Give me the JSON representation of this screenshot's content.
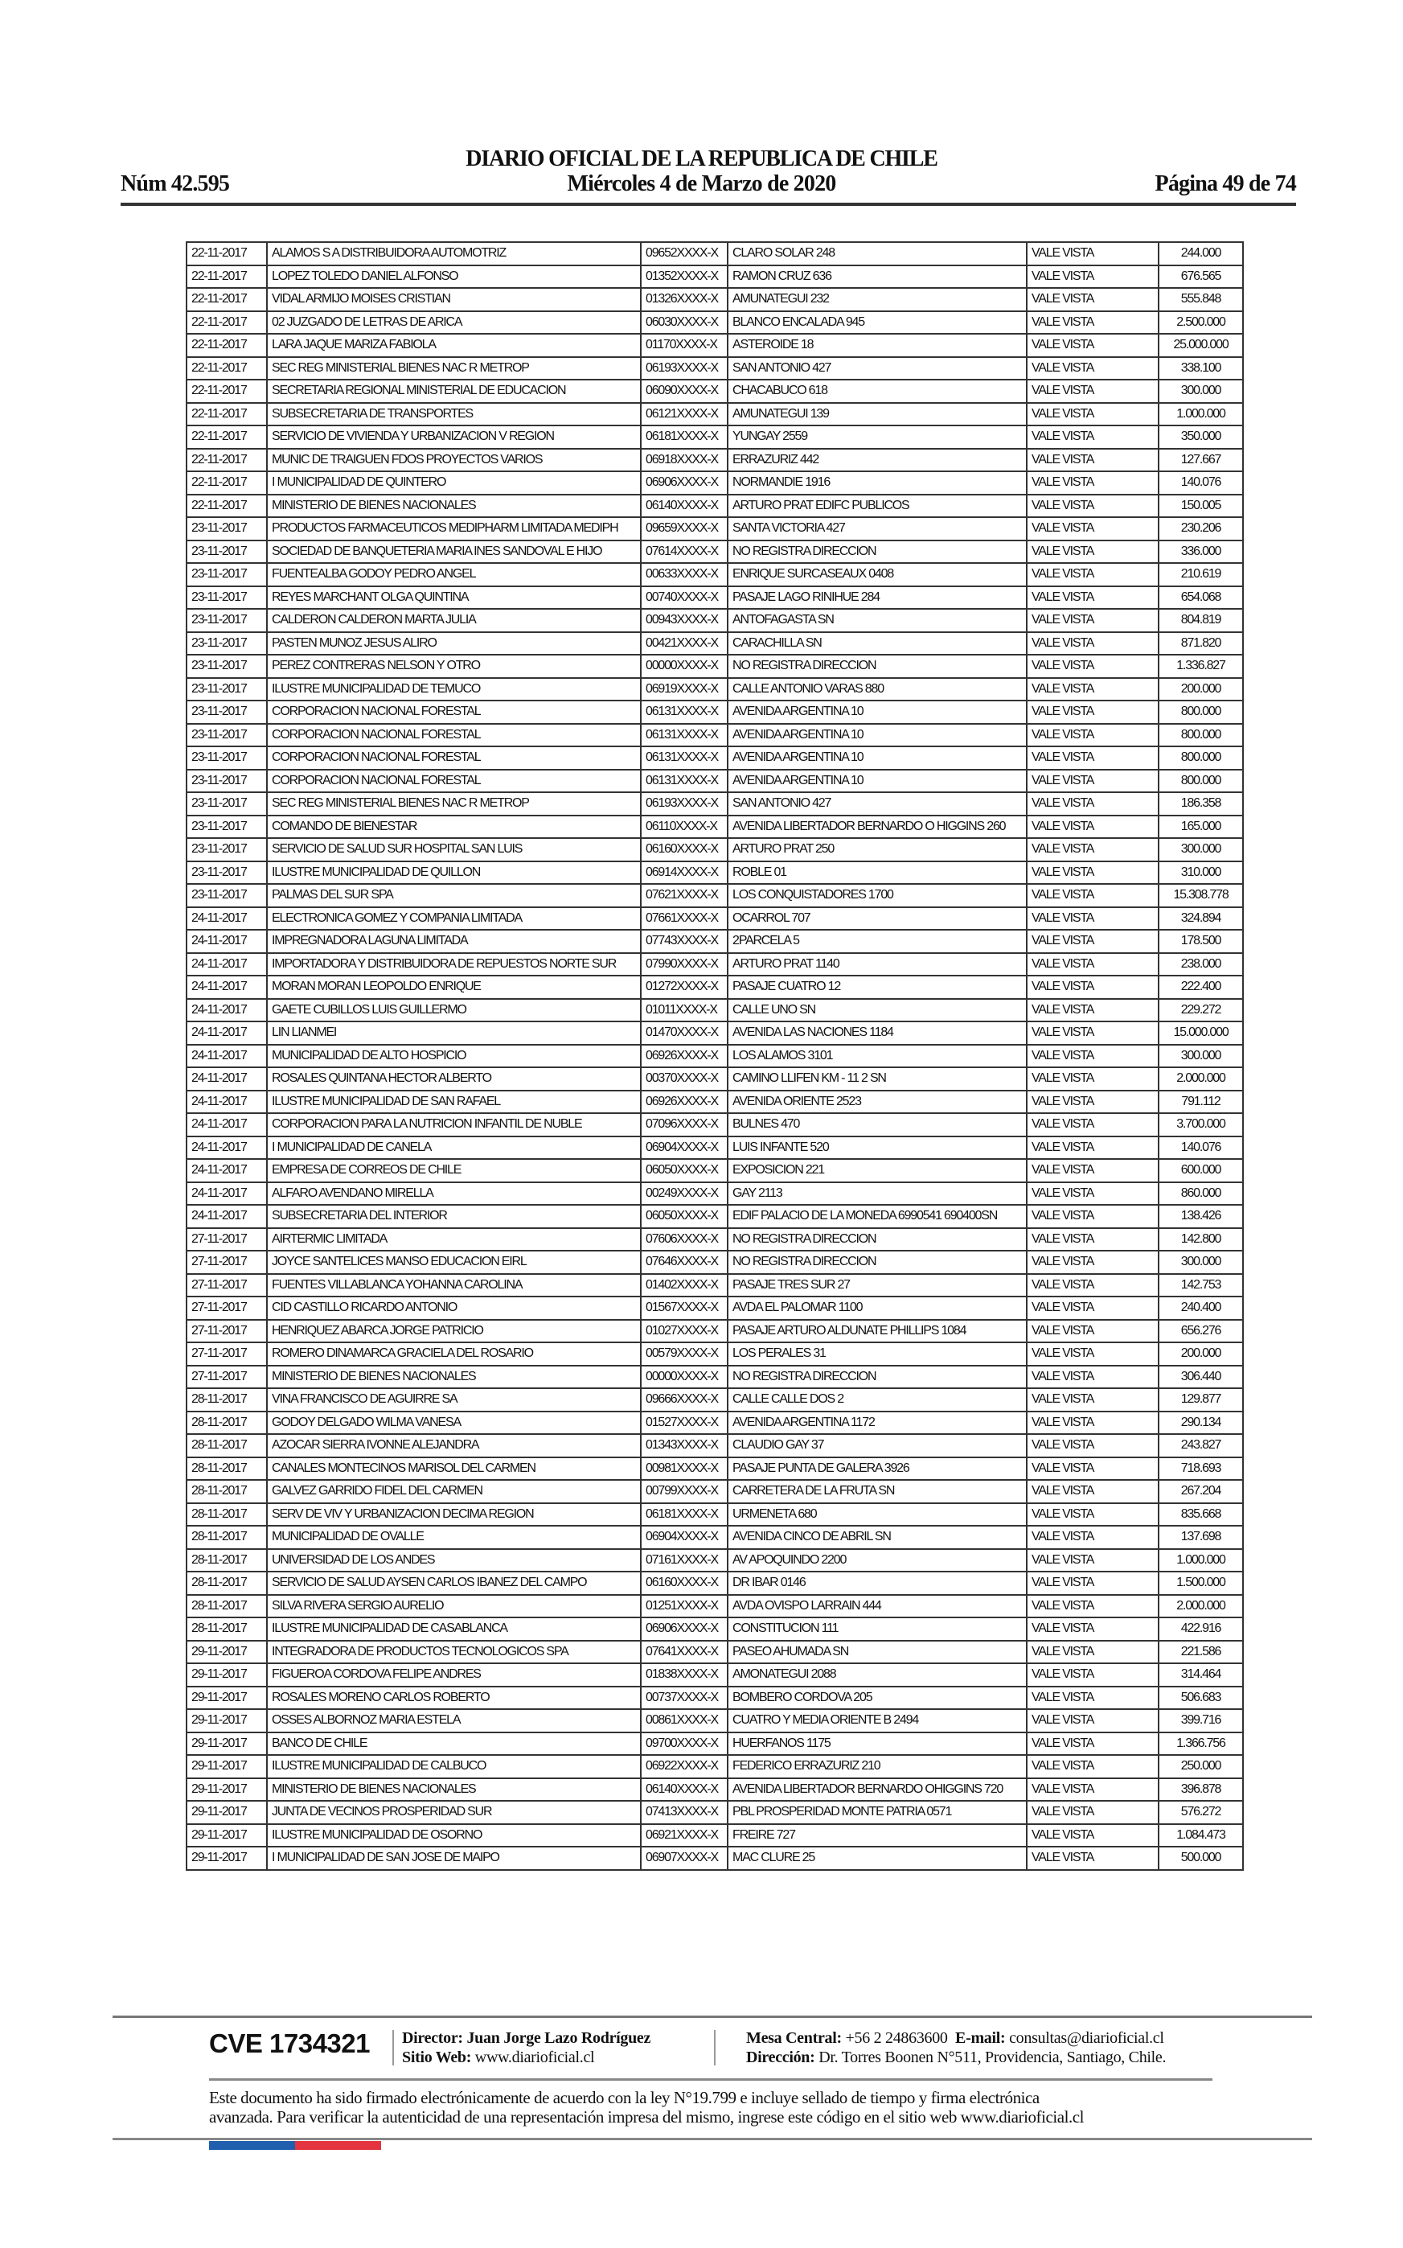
{
  "header": {
    "title": "DIARIO OFICIAL DE LA REPUBLICA DE CHILE",
    "date": "Miércoles 4 de Marzo de 2020",
    "number": "Núm 42.595",
    "page": "Página 49 de 74"
  },
  "table": {
    "rows": [
      [
        "22-11-2017",
        "ALAMOS S A DISTRIBUIDORA AUTOMOTRIZ",
        "09652XXXX-X",
        "CLARO SOLAR 248",
        "VALE VISTA",
        "244.000"
      ],
      [
        "22-11-2017",
        "LOPEZ TOLEDO DANIEL ALFONSO",
        "01352XXXX-X",
        "RAMON CRUZ 636",
        "VALE VISTA",
        "676.565"
      ],
      [
        "22-11-2017",
        "VIDAL ARMIJO MOISES CRISTIAN",
        "01326XXXX-X",
        "AMUNATEGUI 232",
        "VALE VISTA",
        "555.848"
      ],
      [
        "22-11-2017",
        "02 JUZGADO DE LETRAS DE ARICA",
        "06030XXXX-X",
        "BLANCO ENCALADA 945",
        "VALE VISTA",
        "2.500.000"
      ],
      [
        "22-11-2017",
        "LARA JAQUE MARIZA FABIOLA",
        "01170XXXX-X",
        "ASTEROIDE 18",
        "VALE VISTA",
        "25.000.000"
      ],
      [
        "22-11-2017",
        "SEC REG MINISTERIAL BIENES NAC R METROP",
        "06193XXXX-X",
        "SAN ANTONIO 427",
        "VALE VISTA",
        "338.100"
      ],
      [
        "22-11-2017",
        "SECRETARIA REGIONAL MINISTERIAL DE EDUCACION",
        "06090XXXX-X",
        "CHACABUCO 618",
        "VALE VISTA",
        "300.000"
      ],
      [
        "22-11-2017",
        "SUBSECRETARIA DE TRANSPORTES",
        "06121XXXX-X",
        "AMUNATEGUI 139",
        "VALE VISTA",
        "1.000.000"
      ],
      [
        "22-11-2017",
        "SERVICIO DE VIVIENDA Y URBANIZACION V REGION",
        "06181XXXX-X",
        "YUNGAY 2559",
        "VALE VISTA",
        "350.000"
      ],
      [
        "22-11-2017",
        "MUNIC DE TRAIGUEN FDOS PROYECTOS VARIOS",
        "06918XXXX-X",
        "ERRAZURIZ 442",
        "VALE VISTA",
        "127.667"
      ],
      [
        "22-11-2017",
        "I MUNICIPALIDAD DE QUINTERO",
        "06906XXXX-X",
        "NORMANDIE 1916",
        "VALE VISTA",
        "140.076"
      ],
      [
        "22-11-2017",
        "MINISTERIO DE BIENES NACIONALES",
        "06140XXXX-X",
        "ARTURO PRAT EDIFC PUBLICOS",
        "VALE VISTA",
        "150.005"
      ],
      [
        "23-11-2017",
        "PRODUCTOS FARMACEUTICOS MEDIPHARM LIMITADA MEDIPH",
        "09659XXXX-X",
        "SANTA VICTORIA 427",
        "VALE VISTA",
        "230.206"
      ],
      [
        "23-11-2017",
        "SOCIEDAD DE BANQUETERIA MARIA INES SANDOVAL E HIJO",
        "07614XXXX-X",
        "NO REGISTRA DIRECCION",
        "VALE VISTA",
        "336.000"
      ],
      [
        "23-11-2017",
        "FUENTEALBA GODOY PEDRO ANGEL",
        "00633XXXX-X",
        "ENRIQUE SURCASEAUX 0408",
        "VALE VISTA",
        "210.619"
      ],
      [
        "23-11-2017",
        "REYES MARCHANT OLGA QUINTINA",
        "00740XXXX-X",
        "PASAJE LAGO RINIHUE 284",
        "VALE VISTA",
        "654.068"
      ],
      [
        "23-11-2017",
        "CALDERON CALDERON MARTA JULIA",
        "00943XXXX-X",
        "ANTOFAGASTA SN",
        "VALE VISTA",
        "804.819"
      ],
      [
        "23-11-2017",
        "PASTEN MUNOZ JESUS ALIRO",
        "00421XXXX-X",
        "CARACHILLA SN",
        "VALE VISTA",
        "871.820"
      ],
      [
        "23-11-2017",
        "PEREZ CONTRERAS NELSON Y OTRO",
        "00000XXXX-X",
        "NO REGISTRA DIRECCION",
        "VALE VISTA",
        "1.336.827"
      ],
      [
        "23-11-2017",
        "ILUSTRE MUNICIPALIDAD DE TEMUCO",
        "06919XXXX-X",
        "CALLE ANTONIO VARAS 880",
        "VALE VISTA",
        "200.000"
      ],
      [
        "23-11-2017",
        "CORPORACION NACIONAL FORESTAL",
        "06131XXXX-X",
        "AVENIDA ARGENTINA 10",
        "VALE VISTA",
        "800.000"
      ],
      [
        "23-11-2017",
        "CORPORACION NACIONAL FORESTAL",
        "06131XXXX-X",
        "AVENIDA ARGENTINA 10",
        "VALE VISTA",
        "800.000"
      ],
      [
        "23-11-2017",
        "CORPORACION NACIONAL FORESTAL",
        "06131XXXX-X",
        "AVENIDA ARGENTINA 10",
        "VALE VISTA",
        "800.000"
      ],
      [
        "23-11-2017",
        "CORPORACION NACIONAL FORESTAL",
        "06131XXXX-X",
        "AVENIDA ARGENTINA 10",
        "VALE VISTA",
        "800.000"
      ],
      [
        "23-11-2017",
        "SEC REG MINISTERIAL BIENES NAC R METROP",
        "06193XXXX-X",
        "SAN ANTONIO 427",
        "VALE VISTA",
        "186.358"
      ],
      [
        "23-11-2017",
        "COMANDO DE BIENESTAR",
        "06110XXXX-X",
        "AVENIDA LIBERTADOR BERNARDO O HIGGINS 260",
        "VALE VISTA",
        "165.000"
      ],
      [
        "23-11-2017",
        "SERVICIO DE SALUD SUR HOSPITAL SAN LUIS",
        "06160XXXX-X",
        "ARTURO PRAT 250",
        "VALE VISTA",
        "300.000"
      ],
      [
        "23-11-2017",
        "ILUSTRE MUNICIPALIDAD DE QUILLON",
        "06914XXXX-X",
        "ROBLE 01",
        "VALE VISTA",
        "310.000"
      ],
      [
        "23-11-2017",
        "PALMAS DEL SUR SPA",
        "07621XXXX-X",
        "LOS CONQUISTADORES 1700",
        "VALE VISTA",
        "15.308.778"
      ],
      [
        "24-11-2017",
        "ELECTRONICA GOMEZ Y COMPANIA LIMITADA",
        "07661XXXX-X",
        "OCARROL 707",
        "VALE VISTA",
        "324.894"
      ],
      [
        "24-11-2017",
        "IMPREGNADORA LAGUNA LIMITADA",
        "07743XXXX-X",
        "2PARCELA 5",
        "VALE VISTA",
        "178.500"
      ],
      [
        "24-11-2017",
        "IMPORTADORA Y DISTRIBUIDORA DE REPUESTOS NORTE SUR",
        "07990XXXX-X",
        "ARTURO PRAT 1140",
        "VALE VISTA",
        "238.000"
      ],
      [
        "24-11-2017",
        "MORAN MORAN LEOPOLDO ENRIQUE",
        "01272XXXX-X",
        "PASAJE CUATRO 12",
        "VALE VISTA",
        "222.400"
      ],
      [
        "24-11-2017",
        "GAETE CUBILLOS LUIS GUILLERMO",
        "01011XXXX-X",
        "CALLE UNO SN",
        "VALE VISTA",
        "229.272"
      ],
      [
        "24-11-2017",
        "LIN LIANMEI",
        "01470XXXX-X",
        "AVENIDA LAS NACIONES 1184",
        "VALE VISTA",
        "15.000.000"
      ],
      [
        "24-11-2017",
        "MUNICIPALIDAD DE ALTO HOSPICIO",
        "06926XXXX-X",
        "LOS ALAMOS 3101",
        "VALE VISTA",
        "300.000"
      ],
      [
        "24-11-2017",
        "ROSALES QUINTANA HECTOR ALBERTO",
        "00370XXXX-X",
        "CAMINO LLIFEN KM - 11 2 SN",
        "VALE VISTA",
        "2.000.000"
      ],
      [
        "24-11-2017",
        "ILUSTRE MUNICIPALIDAD DE SAN RAFAEL",
        "06926XXXX-X",
        "AVENIDA ORIENTE 2523",
        "VALE VISTA",
        "791.112"
      ],
      [
        "24-11-2017",
        "CORPORACION PARA LA NUTRICION INFANTIL DE NUBLE",
        "07096XXXX-X",
        "BULNES 470",
        "VALE VISTA",
        "3.700.000"
      ],
      [
        "24-11-2017",
        "I MUNICIPALIDAD DE CANELA",
        "06904XXXX-X",
        "LUIS INFANTE 520",
        "VALE VISTA",
        "140.076"
      ],
      [
        "24-11-2017",
        "EMPRESA DE CORREOS DE CHILE",
        "06050XXXX-X",
        "EXPOSICION 221",
        "VALE VISTA",
        "600.000"
      ],
      [
        "24-11-2017",
        "ALFARO AVENDANO MIRELLA",
        "00249XXXX-X",
        "GAY 2113",
        "VALE VISTA",
        "860.000"
      ],
      [
        "24-11-2017",
        "SUBSECRETARIA DEL INTERIOR",
        "06050XXXX-X",
        "EDIF PALACIO DE LA MONEDA 6990541 690400SN",
        "VALE VISTA",
        "138.426"
      ],
      [
        "27-11-2017",
        "AIRTERMIC LIMITADA",
        "07606XXXX-X",
        "NO REGISTRA DIRECCION",
        "VALE VISTA",
        "142.800"
      ],
      [
        "27-11-2017",
        "JOYCE SANTELICES MANSO EDUCACION EIRL",
        "07646XXXX-X",
        "NO REGISTRA DIRECCION",
        "VALE VISTA",
        "300.000"
      ],
      [
        "27-11-2017",
        "FUENTES VILLABLANCA YOHANNA CAROLINA",
        "01402XXXX-X",
        "PASAJE TRES SUR 27",
        "VALE VISTA",
        "142.753"
      ],
      [
        "27-11-2017",
        "CID CASTILLO RICARDO ANTONIO",
        "01567XXXX-X",
        "AVDA EL PALOMAR 1100",
        "VALE VISTA",
        "240.400"
      ],
      [
        "27-11-2017",
        "HENRIQUEZ ABARCA JORGE PATRICIO",
        "01027XXXX-X",
        "PASAJE ARTURO ALDUNATE PHILLIPS 1084",
        "VALE VISTA",
        "656.276"
      ],
      [
        "27-11-2017",
        "ROMERO DINAMARCA GRACIELA DEL ROSARIO",
        "00579XXXX-X",
        "LOS PERALES 31",
        "VALE VISTA",
        "200.000"
      ],
      [
        "27-11-2017",
        "MINISTERIO DE BIENES NACIONALES",
        "00000XXXX-X",
        "NO REGISTRA DIRECCION",
        "VALE VISTA",
        "306.440"
      ],
      [
        "28-11-2017",
        "VINA FRANCISCO DE AGUIRRE SA",
        "09666XXXX-X",
        "CALLE CALLE DOS 2",
        "VALE VISTA",
        "129.877"
      ],
      [
        "28-11-2017",
        "GODOY DELGADO WILMA VANESA",
        "01527XXXX-X",
        "AVENIDA ARGENTINA 1172",
        "VALE VISTA",
        "290.134"
      ],
      [
        "28-11-2017",
        "AZOCAR SIERRA IVONNE ALEJANDRA",
        "01343XXXX-X",
        "CLAUDIO GAY 37",
        "VALE VISTA",
        "243.827"
      ],
      [
        "28-11-2017",
        "CANALES MONTECINOS MARISOL DEL CARMEN",
        "00981XXXX-X",
        "PASAJE PUNTA DE GALERA 3926",
        "VALE VISTA",
        "718.693"
      ],
      [
        "28-11-2017",
        "GALVEZ GARRIDO FIDEL DEL CARMEN",
        "00799XXXX-X",
        "CARRETERA DE LA FRUTA SN",
        "VALE VISTA",
        "267.204"
      ],
      [
        "28-11-2017",
        "SERV DE VIV Y URBANIZACION DECIMA REGION",
        "06181XXXX-X",
        "URMENETA 680",
        "VALE VISTA",
        "835.668"
      ],
      [
        "28-11-2017",
        "MUNICIPALIDAD DE OVALLE",
        "06904XXXX-X",
        "AVENIDA CINCO DE ABRIL SN",
        "VALE VISTA",
        "137.698"
      ],
      [
        "28-11-2017",
        "UNIVERSIDAD DE LOS ANDES",
        "07161XXXX-X",
        "AV APOQUINDO 2200",
        "VALE VISTA",
        "1.000.000"
      ],
      [
        "28-11-2017",
        "SERVICIO DE SALUD AYSEN CARLOS IBANEZ DEL CAMPO",
        "06160XXXX-X",
        "DR IBAR 0146",
        "VALE VISTA",
        "1.500.000"
      ],
      [
        "28-11-2017",
        "SILVA RIVERA SERGIO AURELIO",
        "01251XXXX-X",
        "AVDA OVISPO LARRAIN 444",
        "VALE VISTA",
        "2.000.000"
      ],
      [
        "28-11-2017",
        "ILUSTRE MUNICIPALIDAD DE CASABLANCA",
        "06906XXXX-X",
        "CONSTITUCION 111",
        "VALE VISTA",
        "422.916"
      ],
      [
        "29-11-2017",
        "INTEGRADORA DE PRODUCTOS TECNOLOGICOS SPA",
        "07641XXXX-X",
        "PASEO AHUMADA SN",
        "VALE VISTA",
        "221.586"
      ],
      [
        "29-11-2017",
        "FIGUEROA CORDOVA FELIPE ANDRES",
        "01838XXXX-X",
        "AMONATEGUI 2088",
        "VALE VISTA",
        "314.464"
      ],
      [
        "29-11-2017",
        "ROSALES MORENO CARLOS ROBERTO",
        "00737XXXX-X",
        "BOMBERO CORDOVA 205",
        "VALE VISTA",
        "506.683"
      ],
      [
        "29-11-2017",
        "OSSES ALBORNOZ MARIA ESTELA",
        "00861XXXX-X",
        "CUATRO Y MEDIA ORIENTE B 2494",
        "VALE VISTA",
        "399.716"
      ],
      [
        "29-11-2017",
        "BANCO DE CHILE",
        "09700XXXX-X",
        "HUERFANOS 1175",
        "VALE VISTA",
        "1.366.756"
      ],
      [
        "29-11-2017",
        "ILUSTRE MUNICIPALIDAD DE CALBUCO",
        "06922XXXX-X",
        "FEDERICO ERRAZURIZ 210",
        "VALE VISTA",
        "250.000"
      ],
      [
        "29-11-2017",
        "MINISTERIO DE BIENES NACIONALES",
        "06140XXXX-X",
        "AVENIDA LIBERTADOR BERNARDO OHIGGINS 720",
        "VALE VISTA",
        "396.878"
      ],
      [
        "29-11-2017",
        "JUNTA DE VECINOS PROSPERIDAD SUR",
        "07413XXXX-X",
        "PBL PROSPERIDAD MONTE PATRIA 0571",
        "VALE VISTA",
        "576.272"
      ],
      [
        "29-11-2017",
        "ILUSTRE MUNICIPALIDAD DE OSORNO",
        "06921XXXX-X",
        "FREIRE 727",
        "VALE VISTA",
        "1.084.473"
      ],
      [
        "29-11-2017",
        "I MUNICIPALIDAD DE SAN JOSE DE MAIPO",
        "06907XXXX-X",
        "MAC CLURE 25",
        "VALE VISTA",
        "500.000"
      ]
    ]
  },
  "footer": {
    "cve": "CVE 1734321",
    "director_label": "Director:",
    "director": "Juan Jorge Lazo Rodríguez",
    "web_label": "Sitio Web:",
    "web": "www.diarioficial.cl",
    "phone_label": "Mesa Central:",
    "phone": "+56 2 24863600",
    "email_label": "E-mail:",
    "email": "consultas@diarioficial.cl",
    "address_label": "Dirección:",
    "address": "Dr. Torres Boonen N°511, Providencia, Santiago, Chile.",
    "notice_line1": "Este documento ha sido firmado electrónicamente de acuerdo con la ley N°19.799 e incluye sellado de tiempo y firma electrónica",
    "notice_line2": "avanzada. Para verificar la autenticidad de una representación impresa del mismo, ingrese este código en el sitio web www.diarioficial.cl",
    "flag_colors": [
      "#1f5fad",
      "#e4343f"
    ]
  }
}
